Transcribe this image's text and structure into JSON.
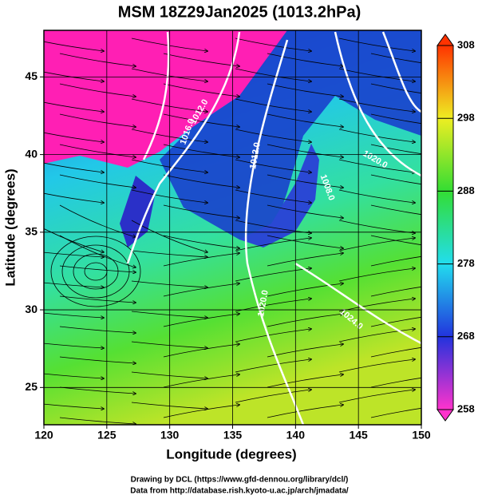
{
  "chart_data": {
    "type": "contour",
    "title": "MSM 18Z29Jan2025 (1013.2hPa)",
    "xlabel": "Longitude (degrees)",
    "ylabel": "Latitude  (degrees)",
    "xlim": [
      120,
      150
    ],
    "ylim": [
      22.6,
      48.0
    ],
    "xticks": [
      120,
      125,
      130,
      135,
      140,
      145,
      150
    ],
    "yticks": [
      25,
      30,
      35,
      40,
      45
    ],
    "grid": true,
    "colorbar": {
      "lim": [
        258,
        308
      ],
      "ticks": [
        258,
        268,
        278,
        288,
        298,
        308
      ],
      "colors": [
        "#ff33cc",
        "#2233dd",
        "#22ddee",
        "#33dd33",
        "#eeee22",
        "#ff3300"
      ]
    },
    "contour_labels": [
      "1016.0",
      "1012.0",
      "1008.0",
      "1020.0",
      "1024.0",
      "1020.0",
      "1012.0"
    ],
    "footer": [
      "Drawing by DCL (https://www.gfd-dennou.org/library/dcl/)",
      "Data from http://database.rish.kyoto-u.ac.jp/arch/jmadata/"
    ]
  }
}
